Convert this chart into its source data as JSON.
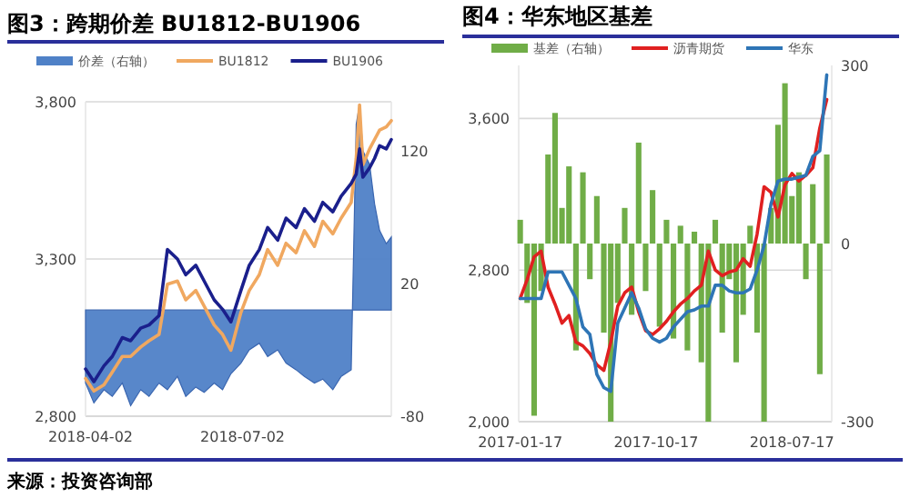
{
  "chart_data": [
    {
      "type": "line",
      "title": "图3：跨期价差 BU1812-BU1906",
      "legend": "top",
      "grid": "y",
      "x": [
        "2018-03-30",
        "2018-04-04",
        "2018-04-10",
        "2018-04-15",
        "2018-04-21",
        "2018-04-26",
        "2018-05-02",
        "2018-05-07",
        "2018-05-13",
        "2018-05-18",
        "2018-05-24",
        "2018-05-29",
        "2018-06-04",
        "2018-06-09",
        "2018-06-15",
        "2018-06-20",
        "2018-06-25",
        "2018-07-01",
        "2018-07-06",
        "2018-07-12",
        "2018-07-17",
        "2018-07-23",
        "2018-07-28",
        "2018-08-03",
        "2018-08-08",
        "2018-08-14",
        "2018-08-19",
        "2018-08-25",
        "2018-08-30",
        "2018-09-05",
        "2018-09-08",
        "2018-09-10",
        "2018-09-12",
        "2018-09-16",
        "2018-09-19",
        "2018-09-22",
        "2018-09-26",
        "2018-09-29"
      ],
      "xlim": [
        "2018-03-30",
        "2018-09-29"
      ],
      "xticks": [
        "2018-04-02",
        "2018-07-02"
      ],
      "ylim": [
        2800,
        3800
      ],
      "yticks": [
        {
          "value": 2800,
          "label": "2,800"
        },
        {
          "value": 3300,
          "label": "3,300"
        },
        {
          "value": 3800,
          "label": "3,800"
        }
      ],
      "y2lim": [
        -80,
        157
      ],
      "y2ticks": [
        -80,
        20,
        120
      ],
      "series": [
        {
          "name": "价差（右轴）",
          "type": "area",
          "axis": "y2",
          "color": "#4f81c7",
          "values": [
            -55,
            -70,
            -60,
            -65,
            -55,
            -72,
            -60,
            -65,
            -55,
            -60,
            -50,
            -65,
            -58,
            -62,
            -55,
            -60,
            -48,
            -40,
            -30,
            -25,
            -35,
            -30,
            -40,
            -45,
            -50,
            -55,
            -52,
            -60,
            -50,
            -45,
            140,
            155,
            120,
            110,
            80,
            60,
            50,
            55
          ]
        },
        {
          "name": "BU1812",
          "color": "#f0a860",
          "values": [
            2920,
            2880,
            2900,
            2940,
            2990,
            2990,
            3020,
            3040,
            3060,
            3220,
            3230,
            3170,
            3200,
            3150,
            3090,
            3060,
            3010,
            3130,
            3200,
            3250,
            3330,
            3280,
            3350,
            3320,
            3390,
            3340,
            3420,
            3380,
            3430,
            3480,
            3620,
            3790,
            3600,
            3650,
            3680,
            3710,
            3720,
            3740
          ]
        },
        {
          "name": "BU1906",
          "color": "#1a1f8c",
          "values": [
            2950,
            2910,
            2960,
            2990,
            3050,
            3040,
            3080,
            3090,
            3120,
            3330,
            3300,
            3250,
            3280,
            3230,
            3170,
            3140,
            3100,
            3200,
            3280,
            3330,
            3400,
            3360,
            3430,
            3400,
            3460,
            3420,
            3480,
            3450,
            3500,
            3540,
            3570,
            3650,
            3560,
            3590,
            3620,
            3660,
            3650,
            3680
          ]
        }
      ],
      "annotations": [
        "来源：投资咨询部"
      ]
    },
    {
      "type": "line",
      "title": "图4：华东地区基差",
      "legend": "top",
      "grid": "y",
      "x": [
        "2017-01-17",
        "2017-01-31",
        "2017-02-14",
        "2017-02-28",
        "2017-03-14",
        "2017-03-28",
        "2017-04-11",
        "2017-04-25",
        "2017-05-09",
        "2017-05-23",
        "2017-06-06",
        "2017-06-20",
        "2017-07-04",
        "2017-07-18",
        "2017-08-01",
        "2017-08-15",
        "2017-08-29",
        "2017-09-12",
        "2017-09-26",
        "2017-10-10",
        "2017-10-24",
        "2017-11-07",
        "2017-11-21",
        "2017-12-05",
        "2017-12-19",
        "2018-01-02",
        "2018-01-16",
        "2018-01-30",
        "2018-02-13",
        "2018-02-27",
        "2018-03-13",
        "2018-03-27",
        "2018-04-10",
        "2018-04-24",
        "2018-05-08",
        "2018-05-22",
        "2018-06-05",
        "2018-06-19",
        "2018-07-03",
        "2018-07-17",
        "2018-07-31",
        "2018-08-14",
        "2018-08-28",
        "2018-09-11",
        "2018-09-25"
      ],
      "xlim": [
        "2017-01-14",
        "2018-10-05"
      ],
      "xticks": [
        "2017-01-17",
        "2017-10-17",
        "2018-07-17"
      ],
      "ylim": [
        2000,
        3880
      ],
      "yticks": [
        {
          "value": 2000,
          "label": "2,000"
        },
        {
          "value": 2800,
          "label": "2,800"
        },
        {
          "value": 3600,
          "label": "3,600"
        }
      ],
      "y2lim": [
        -300,
        300
      ],
      "y2ticks": [
        -300,
        0,
        300
      ],
      "series": [
        {
          "name": "基差（右轴）",
          "type": "bar",
          "axis": "y2",
          "color": "#70ad47",
          "values": [
            40,
            -100,
            -290,
            -80,
            150,
            220,
            60,
            130,
            -180,
            120,
            -60,
            80,
            -150,
            -300,
            -100,
            60,
            -120,
            170,
            -80,
            90,
            -140,
            40,
            -160,
            30,
            -180,
            20,
            -200,
            -300,
            40,
            -150,
            -60,
            -200,
            -120,
            30,
            -150,
            -300,
            60,
            200,
            270,
            80,
            120,
            -60,
            100,
            -220,
            150
          ]
        },
        {
          "name": "沥青期货",
          "color": "#e02020",
          "values": [
            2650,
            2750,
            2870,
            2900,
            2710,
            2620,
            2520,
            2560,
            2420,
            2400,
            2360,
            2300,
            2270,
            2420,
            2610,
            2680,
            2710,
            2580,
            2480,
            2460,
            2490,
            2530,
            2580,
            2620,
            2650,
            2690,
            2720,
            2900,
            2800,
            2770,
            2790,
            2800,
            2860,
            2820,
            2990,
            3240,
            3210,
            3080,
            3250,
            3310,
            3270,
            3300,
            3340,
            3550,
            3700
          ]
        },
        {
          "name": "华东",
          "color": "#2e75b6",
          "values": [
            2650,
            2650,
            2650,
            2650,
            2790,
            2790,
            2790,
            2720,
            2650,
            2500,
            2460,
            2250,
            2180,
            2160,
            2520,
            2600,
            2680,
            2600,
            2490,
            2440,
            2420,
            2440,
            2500,
            2540,
            2580,
            2590,
            2610,
            2610,
            2720,
            2720,
            2690,
            2680,
            2680,
            2700,
            2800,
            2930,
            3150,
            3270,
            3280,
            3280,
            3290,
            3300,
            3400,
            3430,
            3830
          ]
        }
      ]
    }
  ]
}
